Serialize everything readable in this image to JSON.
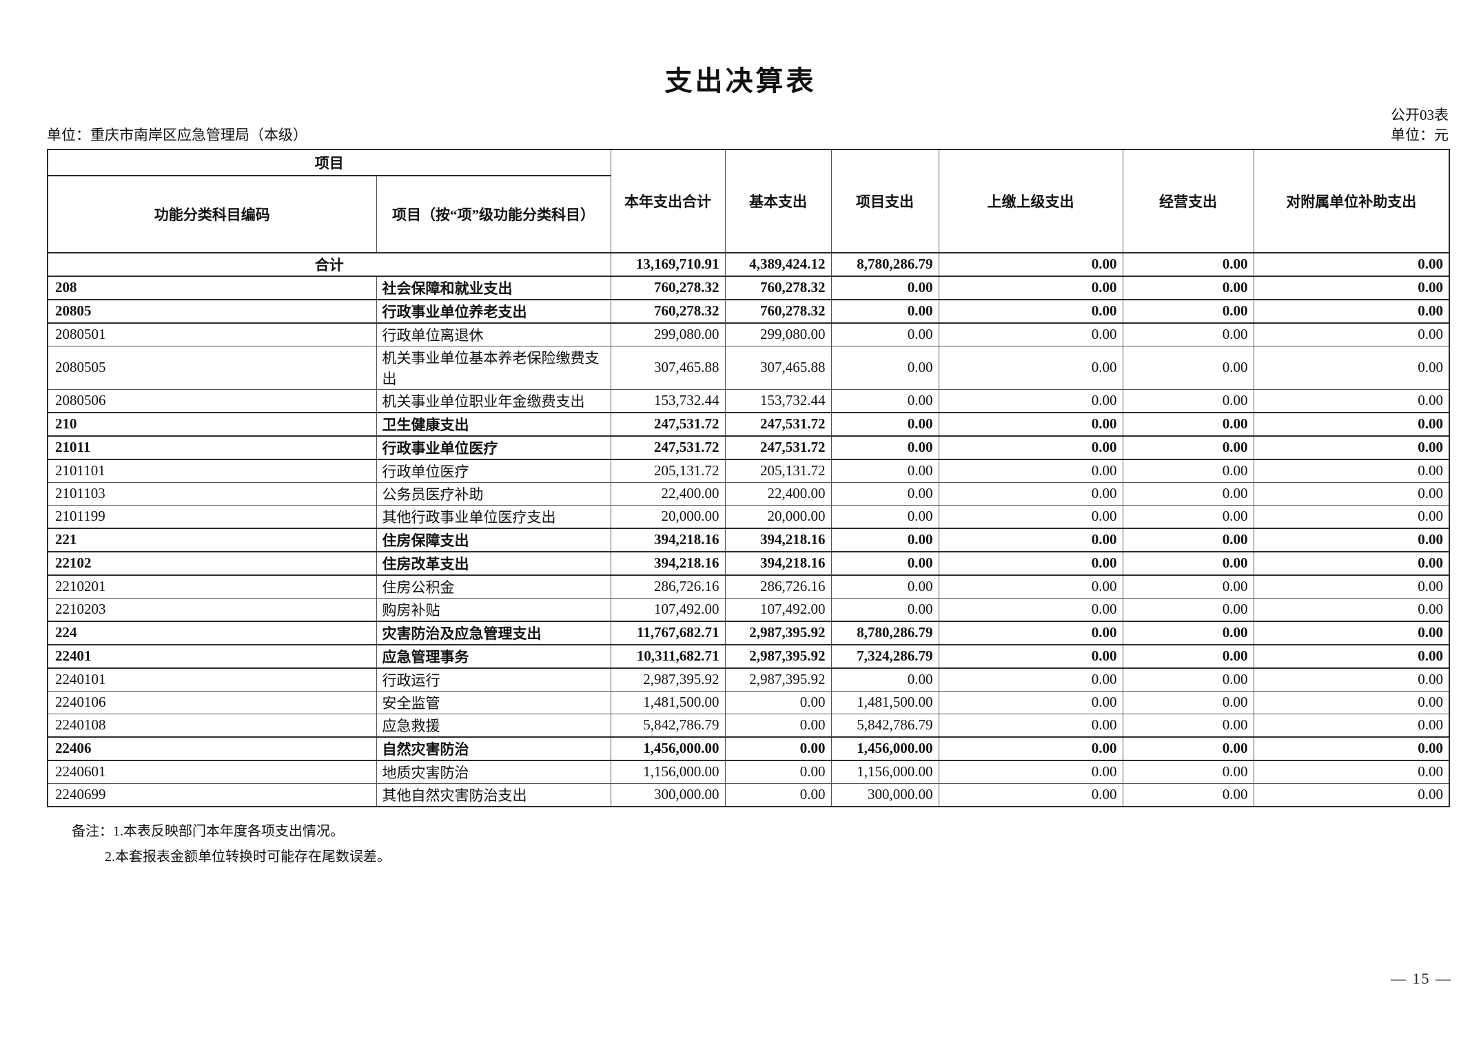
{
  "page": {
    "title": "支出决算表",
    "doc_code": "公开03表",
    "org_label": "单位：重庆市南岸区应急管理局（本级）",
    "unit_label": "单位：元",
    "page_number": "— 15 —"
  },
  "table": {
    "header": {
      "project_group": "项目",
      "code_col": "功能分类科目编码",
      "name_col": "项目（按“项”级功能分类科目）",
      "columns": [
        "本年支出合计",
        "基本支出",
        "项目支出",
        "上缴上级支出",
        "经营支出",
        "对附属单位补助支出"
      ]
    },
    "total_row": {
      "label": "合计",
      "values": [
        "13,169,710.91",
        "4,389,424.12",
        "8,780,286.79",
        "0.00",
        "0.00",
        "0.00"
      ]
    },
    "rows": [
      {
        "code": "208",
        "name": "社会保障和就业支出",
        "bold": true,
        "values": [
          "760,278.32",
          "760,278.32",
          "0.00",
          "0.00",
          "0.00",
          "0.00"
        ]
      },
      {
        "code": "20805",
        "name": "行政事业单位养老支出",
        "bold": true,
        "values": [
          "760,278.32",
          "760,278.32",
          "0.00",
          "0.00",
          "0.00",
          "0.00"
        ]
      },
      {
        "code": "2080501",
        "name": "行政单位离退休",
        "bold": false,
        "values": [
          "299,080.00",
          "299,080.00",
          "0.00",
          "0.00",
          "0.00",
          "0.00"
        ]
      },
      {
        "code": "2080505",
        "name": "机关事业单位基本养老保险缴费支出",
        "bold": false,
        "values": [
          "307,465.88",
          "307,465.88",
          "0.00",
          "0.00",
          "0.00",
          "0.00"
        ]
      },
      {
        "code": "2080506",
        "name": "机关事业单位职业年金缴费支出",
        "bold": false,
        "values": [
          "153,732.44",
          "153,732.44",
          "0.00",
          "0.00",
          "0.00",
          "0.00"
        ]
      },
      {
        "code": "210",
        "name": "卫生健康支出",
        "bold": true,
        "values": [
          "247,531.72",
          "247,531.72",
          "0.00",
          "0.00",
          "0.00",
          "0.00"
        ]
      },
      {
        "code": "21011",
        "name": "行政事业单位医疗",
        "bold": true,
        "values": [
          "247,531.72",
          "247,531.72",
          "0.00",
          "0.00",
          "0.00",
          "0.00"
        ]
      },
      {
        "code": "2101101",
        "name": "行政单位医疗",
        "bold": false,
        "values": [
          "205,131.72",
          "205,131.72",
          "0.00",
          "0.00",
          "0.00",
          "0.00"
        ]
      },
      {
        "code": "2101103",
        "name": "公务员医疗补助",
        "bold": false,
        "values": [
          "22,400.00",
          "22,400.00",
          "0.00",
          "0.00",
          "0.00",
          "0.00"
        ]
      },
      {
        "code": "2101199",
        "name": "其他行政事业单位医疗支出",
        "bold": false,
        "values": [
          "20,000.00",
          "20,000.00",
          "0.00",
          "0.00",
          "0.00",
          "0.00"
        ]
      },
      {
        "code": "221",
        "name": "住房保障支出",
        "bold": true,
        "values": [
          "394,218.16",
          "394,218.16",
          "0.00",
          "0.00",
          "0.00",
          "0.00"
        ]
      },
      {
        "code": "22102",
        "name": "住房改革支出",
        "bold": true,
        "values": [
          "394,218.16",
          "394,218.16",
          "0.00",
          "0.00",
          "0.00",
          "0.00"
        ]
      },
      {
        "code": "2210201",
        "name": "住房公积金",
        "bold": false,
        "values": [
          "286,726.16",
          "286,726.16",
          "0.00",
          "0.00",
          "0.00",
          "0.00"
        ]
      },
      {
        "code": "2210203",
        "name": "购房补贴",
        "bold": false,
        "values": [
          "107,492.00",
          "107,492.00",
          "0.00",
          "0.00",
          "0.00",
          "0.00"
        ]
      },
      {
        "code": "224",
        "name": "灾害防治及应急管理支出",
        "bold": true,
        "values": [
          "11,767,682.71",
          "2,987,395.92",
          "8,780,286.79",
          "0.00",
          "0.00",
          "0.00"
        ]
      },
      {
        "code": "22401",
        "name": "应急管理事务",
        "bold": true,
        "values": [
          "10,311,682.71",
          "2,987,395.92",
          "7,324,286.79",
          "0.00",
          "0.00",
          "0.00"
        ]
      },
      {
        "code": "2240101",
        "name": "行政运行",
        "bold": false,
        "values": [
          "2,987,395.92",
          "2,987,395.92",
          "0.00",
          "0.00",
          "0.00",
          "0.00"
        ]
      },
      {
        "code": "2240106",
        "name": "安全监管",
        "bold": false,
        "values": [
          "1,481,500.00",
          "0.00",
          "1,481,500.00",
          "0.00",
          "0.00",
          "0.00"
        ]
      },
      {
        "code": "2240108",
        "name": "应急救援",
        "bold": false,
        "values": [
          "5,842,786.79",
          "0.00",
          "5,842,786.79",
          "0.00",
          "0.00",
          "0.00"
        ]
      },
      {
        "code": "22406",
        "name": "自然灾害防治",
        "bold": true,
        "values": [
          "1,456,000.00",
          "0.00",
          "1,456,000.00",
          "0.00",
          "0.00",
          "0.00"
        ]
      },
      {
        "code": "2240601",
        "name": "地质灾害防治",
        "bold": false,
        "values": [
          "1,156,000.00",
          "0.00",
          "1,156,000.00",
          "0.00",
          "0.00",
          "0.00"
        ]
      },
      {
        "code": "2240699",
        "name": "其他自然灾害防治支出",
        "bold": false,
        "values": [
          "300,000.00",
          "0.00",
          "300,000.00",
          "0.00",
          "0.00",
          "0.00"
        ]
      }
    ]
  },
  "notes": {
    "label": "备注：",
    "line1": "1.本表反映部门本年度各项支出情况。",
    "line2": "2.本套报表金额单位转换时可能存在尾数误差。"
  }
}
